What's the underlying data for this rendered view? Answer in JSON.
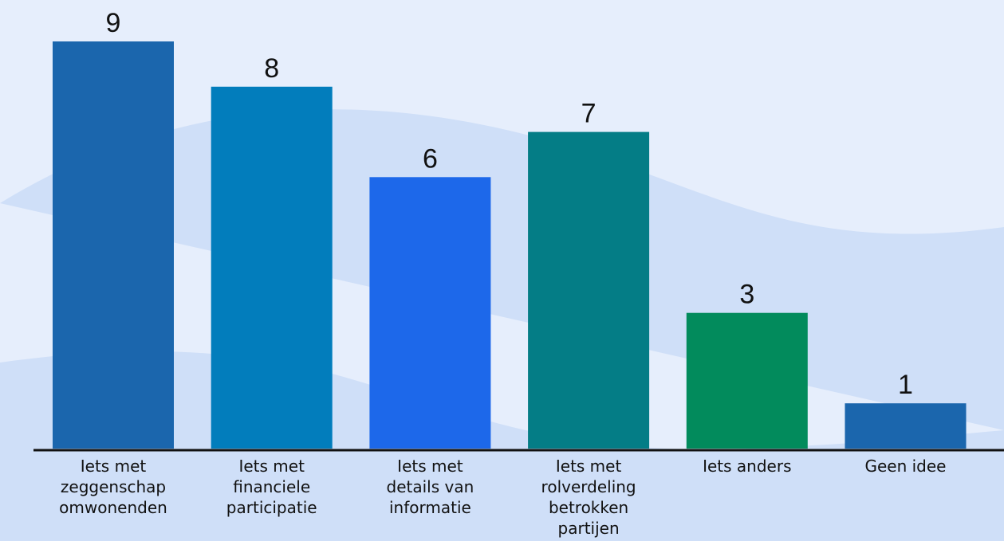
{
  "chart_data": {
    "type": "bar",
    "title": "",
    "xlabel": "",
    "ylabel": "",
    "ylim": [
      0,
      9
    ],
    "grid": false,
    "categories": [
      "Iets met zeggenschap omwonenden",
      "Iets met financiele participatie",
      "Iets met details van informatie",
      "Iets met rolverdeling betrokken partijen",
      "Iets anders",
      "Geen idee"
    ],
    "category_lines": [
      [
        "Iets met",
        "zeggenschap",
        "omwonenden"
      ],
      [
        "Iets met",
        "financiele",
        "participatie"
      ],
      [
        "Iets met",
        "details van",
        "informatie"
      ],
      [
        "Iets met",
        "rolverdeling",
        "betrokken",
        "partijen"
      ],
      [
        "Iets anders"
      ],
      [
        "Geen idee"
      ]
    ],
    "values": [
      9,
      8,
      6,
      7,
      3,
      1
    ],
    "colors": [
      "#1b66ad",
      "#027dbc",
      "#1d68ea",
      "#047d86",
      "#028b5c",
      "#1b66ad"
    ]
  },
  "colors": {
    "background": "#e6eefc",
    "wave": "#cfdff8",
    "axis": "#111111"
  }
}
